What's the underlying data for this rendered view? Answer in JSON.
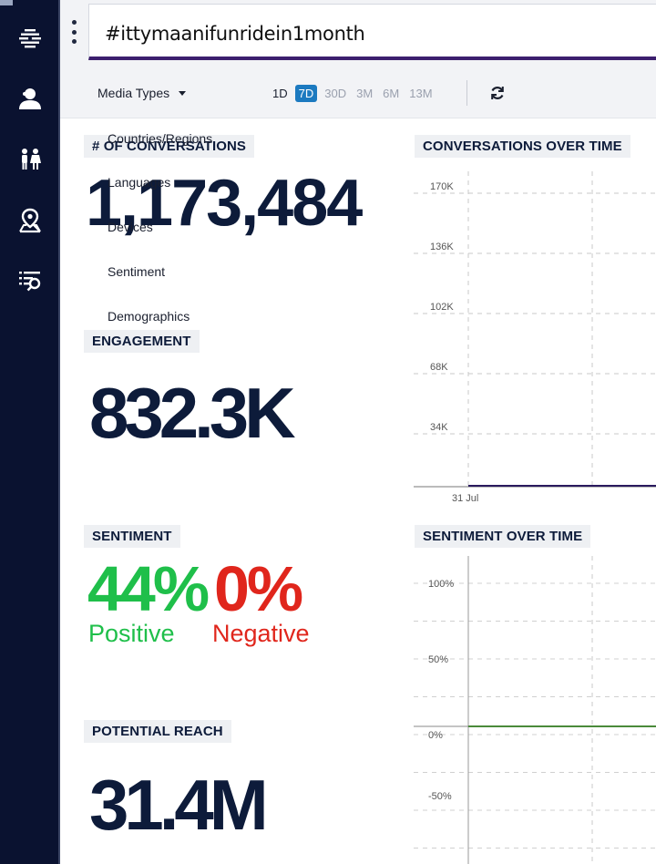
{
  "search": {
    "query": "#ittymaanifunridein1month"
  },
  "filters": {
    "media_types_label": "Media Types",
    "ranges": [
      "1D",
      "7D",
      "30D",
      "3M",
      "6M",
      "13M"
    ],
    "active_range": "7D"
  },
  "dropdown": {
    "items": [
      "Countries/Regions",
      "Languages",
      "Devices",
      "Sentiment",
      "Demographics"
    ]
  },
  "nav": {
    "icons": [
      "stream-icon",
      "user-icon",
      "people-icon",
      "map-pin-icon",
      "list-search-icon"
    ]
  },
  "conversations": {
    "header": "# OF CONVERSATIONS",
    "value": "1,173,484"
  },
  "engagement": {
    "header": "ENGAGEMENT",
    "value": "832.3K"
  },
  "sentiment": {
    "header": "SENTIMENT",
    "positive_value": "44%",
    "positive_label": "Positive",
    "negative_value": "0%",
    "negative_label": "Negative",
    "positive_color": "#1fbf4a",
    "negative_color": "#e0261c"
  },
  "reach": {
    "header": "POTENTIAL REACH",
    "value": "31.4M"
  },
  "conversations_chart": {
    "header": "CONVERSATIONS OVER TIME",
    "chart_data": {
      "type": "line",
      "y_ticks": [
        "170K",
        "136K",
        "102K",
        "68K",
        "34K"
      ],
      "x_ticks": [
        "31 Jul"
      ],
      "ylim": [
        0,
        170000
      ]
    }
  },
  "sentiment_chart": {
    "header": "SENTIMENT OVER TIME",
    "chart_data": {
      "type": "line",
      "y_ticks": [
        "100%",
        "50%",
        "0%",
        "-50%"
      ],
      "ylim": [
        -70,
        110
      ],
      "line_color": "#4a8a3a"
    }
  },
  "colors": {
    "nav_bg": "#0a1230",
    "accent_blue": "#1c7ac0",
    "text_dark": "#0d1b3a"
  }
}
